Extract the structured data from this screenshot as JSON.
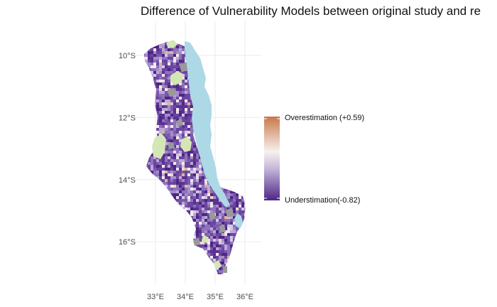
{
  "title": "Difference of Vulnerability Models between original study and re",
  "axes": {
    "y_ticks": [
      {
        "label": "10°S",
        "lat": -10
      },
      {
        "label": "12°S",
        "lat": -12
      },
      {
        "label": "14°S",
        "lat": -14
      },
      {
        "label": "16°S",
        "lat": -16
      }
    ],
    "x_ticks": [
      {
        "label": "33°E",
        "lon": 33
      },
      {
        "label": "34°E",
        "lon": 34
      },
      {
        "label": "35°E",
        "lon": 35
      },
      {
        "label": "36°E",
        "lon": 36
      }
    ],
    "grid": true
  },
  "legend": {
    "max_label": "Overestimation (+0.59)",
    "min_label": "Understimation(-0.82)",
    "max_value": 0.59,
    "min_value": -0.82,
    "colors": {
      "high": "#c8784a",
      "mid": "#f7f2ee",
      "low": "#4e2585"
    }
  },
  "map": {
    "colors": {
      "lake": "#add8e6",
      "protected_area": "#d4e6b5",
      "no_data": "#999999",
      "background": "#ffffff"
    }
  }
}
